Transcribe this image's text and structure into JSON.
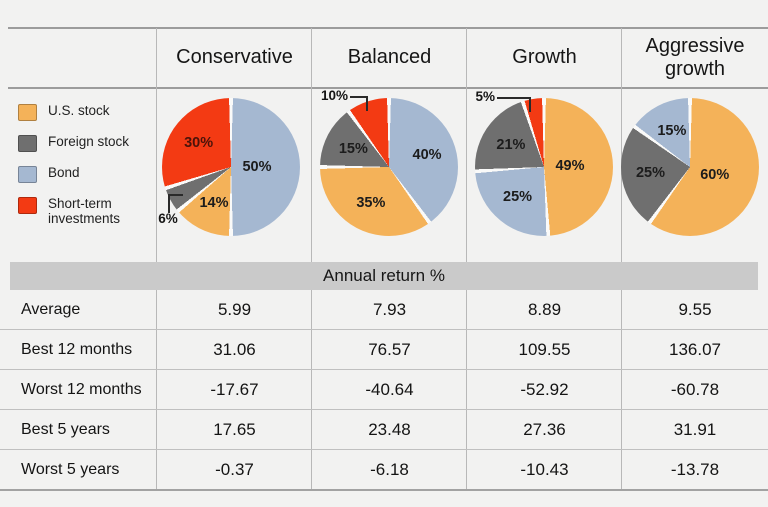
{
  "colors": {
    "us_stock": "#f4b259",
    "foreign_stock": "#6f6f6f",
    "bond": "#a5b8d1",
    "short_term": "#f33a13"
  },
  "legend": {
    "items": [
      {
        "key": "us_stock",
        "label": "U.S. stock"
      },
      {
        "key": "foreign_stock",
        "label": "Foreign stock"
      },
      {
        "key": "bond",
        "label": "Bond"
      },
      {
        "key": "short_term",
        "label": "Short-term investments"
      }
    ]
  },
  "chart_data": [
    {
      "type": "pie",
      "title": "Conservative",
      "start_angle_deg": 0,
      "clockwise": true,
      "slices": [
        {
          "name": "Bond",
          "key": "bond",
          "value": 50,
          "label": "50%"
        },
        {
          "name": "U.S. stock",
          "key": "us_stock",
          "value": 14,
          "label": "14%"
        },
        {
          "name": "Foreign stock",
          "key": "foreign_stock",
          "value": 6,
          "label": "6%",
          "label_outside": true
        },
        {
          "name": "Short-term investments",
          "key": "short_term",
          "value": 30,
          "label": "30%"
        }
      ]
    },
    {
      "type": "pie",
      "title": "Balanced",
      "start_angle_deg": 0,
      "clockwise": true,
      "slices": [
        {
          "name": "Bond",
          "key": "bond",
          "value": 40,
          "label": "40%"
        },
        {
          "name": "U.S. stock",
          "key": "us_stock",
          "value": 35,
          "label": "35%"
        },
        {
          "name": "Foreign stock",
          "key": "foreign_stock",
          "value": 15,
          "label": "15%"
        },
        {
          "name": "Short-term investments",
          "key": "short_term",
          "value": 10,
          "label": "10%",
          "label_outside": true
        }
      ]
    },
    {
      "type": "pie",
      "title": "Growth",
      "start_angle_deg": 0,
      "clockwise": true,
      "slices": [
        {
          "name": "U.S. stock",
          "key": "us_stock",
          "value": 49,
          "label": "49%"
        },
        {
          "name": "Bond",
          "key": "bond",
          "value": 25,
          "label": "25%"
        },
        {
          "name": "Foreign stock",
          "key": "foreign_stock",
          "value": 21,
          "label": "21%"
        },
        {
          "name": "Short-term investments",
          "key": "short_term",
          "value": 5,
          "label": "5%",
          "label_outside": true
        }
      ]
    },
    {
      "type": "pie",
      "title": "Aggressive growth",
      "start_angle_deg": 0,
      "clockwise": true,
      "slices": [
        {
          "name": "U.S. stock",
          "key": "us_stock",
          "value": 60,
          "label": "60%"
        },
        {
          "name": "Foreign stock",
          "key": "foreign_stock",
          "value": 25,
          "label": "25%"
        },
        {
          "name": "Bond",
          "key": "bond",
          "value": 15,
          "label": "15%"
        }
      ]
    },
    {
      "type": "table",
      "title": "Annual return %",
      "columns": [
        "Conservative",
        "Balanced",
        "Growth",
        "Aggressive growth"
      ],
      "rows": [
        {
          "label": "Average",
          "values": [
            "5.99",
            "7.93",
            "8.89",
            "9.55"
          ]
        },
        {
          "label": "Best 12 months",
          "values": [
            "31.06",
            "76.57",
            "109.55",
            "136.07"
          ]
        },
        {
          "label": "Worst 12 months",
          "values": [
            "-17.67",
            "-40.64",
            "-52.92",
            "-60.78"
          ]
        },
        {
          "label": "Best 5 years",
          "values": [
            "17.65",
            "23.48",
            "27.36",
            "31.91"
          ]
        },
        {
          "label": "Worst 5 years",
          "values": [
            "-0.37",
            "-6.18",
            "-10.43",
            "-13.78"
          ]
        }
      ]
    }
  ]
}
